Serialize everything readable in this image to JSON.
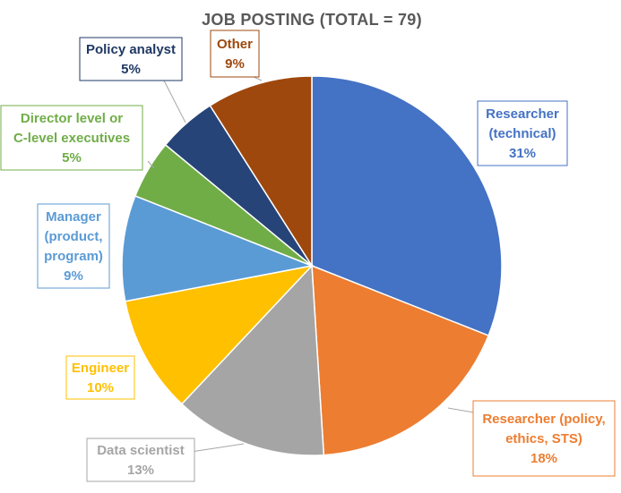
{
  "chart_data": {
    "type": "pie",
    "title": "JOB POSTING (TOTAL = 79)",
    "start_angle_deg": 0,
    "direction": "clockwise",
    "slices": [
      {
        "label_lines": [
          "Researcher",
          "(technical)"
        ],
        "percent_label": "31%",
        "value": 31,
        "color": "#4472C4",
        "label_color": "#4472C4"
      },
      {
        "label_lines": [
          "Researcher (policy,",
          "ethics, STS)"
        ],
        "percent_label": "18%",
        "value": 18,
        "color": "#ED7D31",
        "label_color": "#ED7D31"
      },
      {
        "label_lines": [
          "Data scientist"
        ],
        "percent_label": "13%",
        "value": 13,
        "color": "#A5A5A5",
        "label_color": "#A5A5A5"
      },
      {
        "label_lines": [
          "Engineer"
        ],
        "percent_label": "10%",
        "value": 10,
        "color": "#FFC000",
        "label_color": "#FFC000"
      },
      {
        "label_lines": [
          "Manager",
          "(product,",
          "program)"
        ],
        "percent_label": "9%",
        "value": 9,
        "color": "#5B9BD5",
        "label_color": "#5B9BD5"
      },
      {
        "label_lines": [
          "Director level or",
          "C-level executives"
        ],
        "percent_label": "5%",
        "value": 5,
        "color": "#70AD47",
        "label_color": "#70AD47"
      },
      {
        "label_lines": [
          "Policy analyst"
        ],
        "percent_label": "5%",
        "value": 5,
        "color": "#264478",
        "label_color": "#1F3864"
      },
      {
        "label_lines": [
          "Other"
        ],
        "percent_label": "9%",
        "value": 9,
        "color": "#9E480E",
        "label_color": "#9E480E"
      }
    ]
  }
}
